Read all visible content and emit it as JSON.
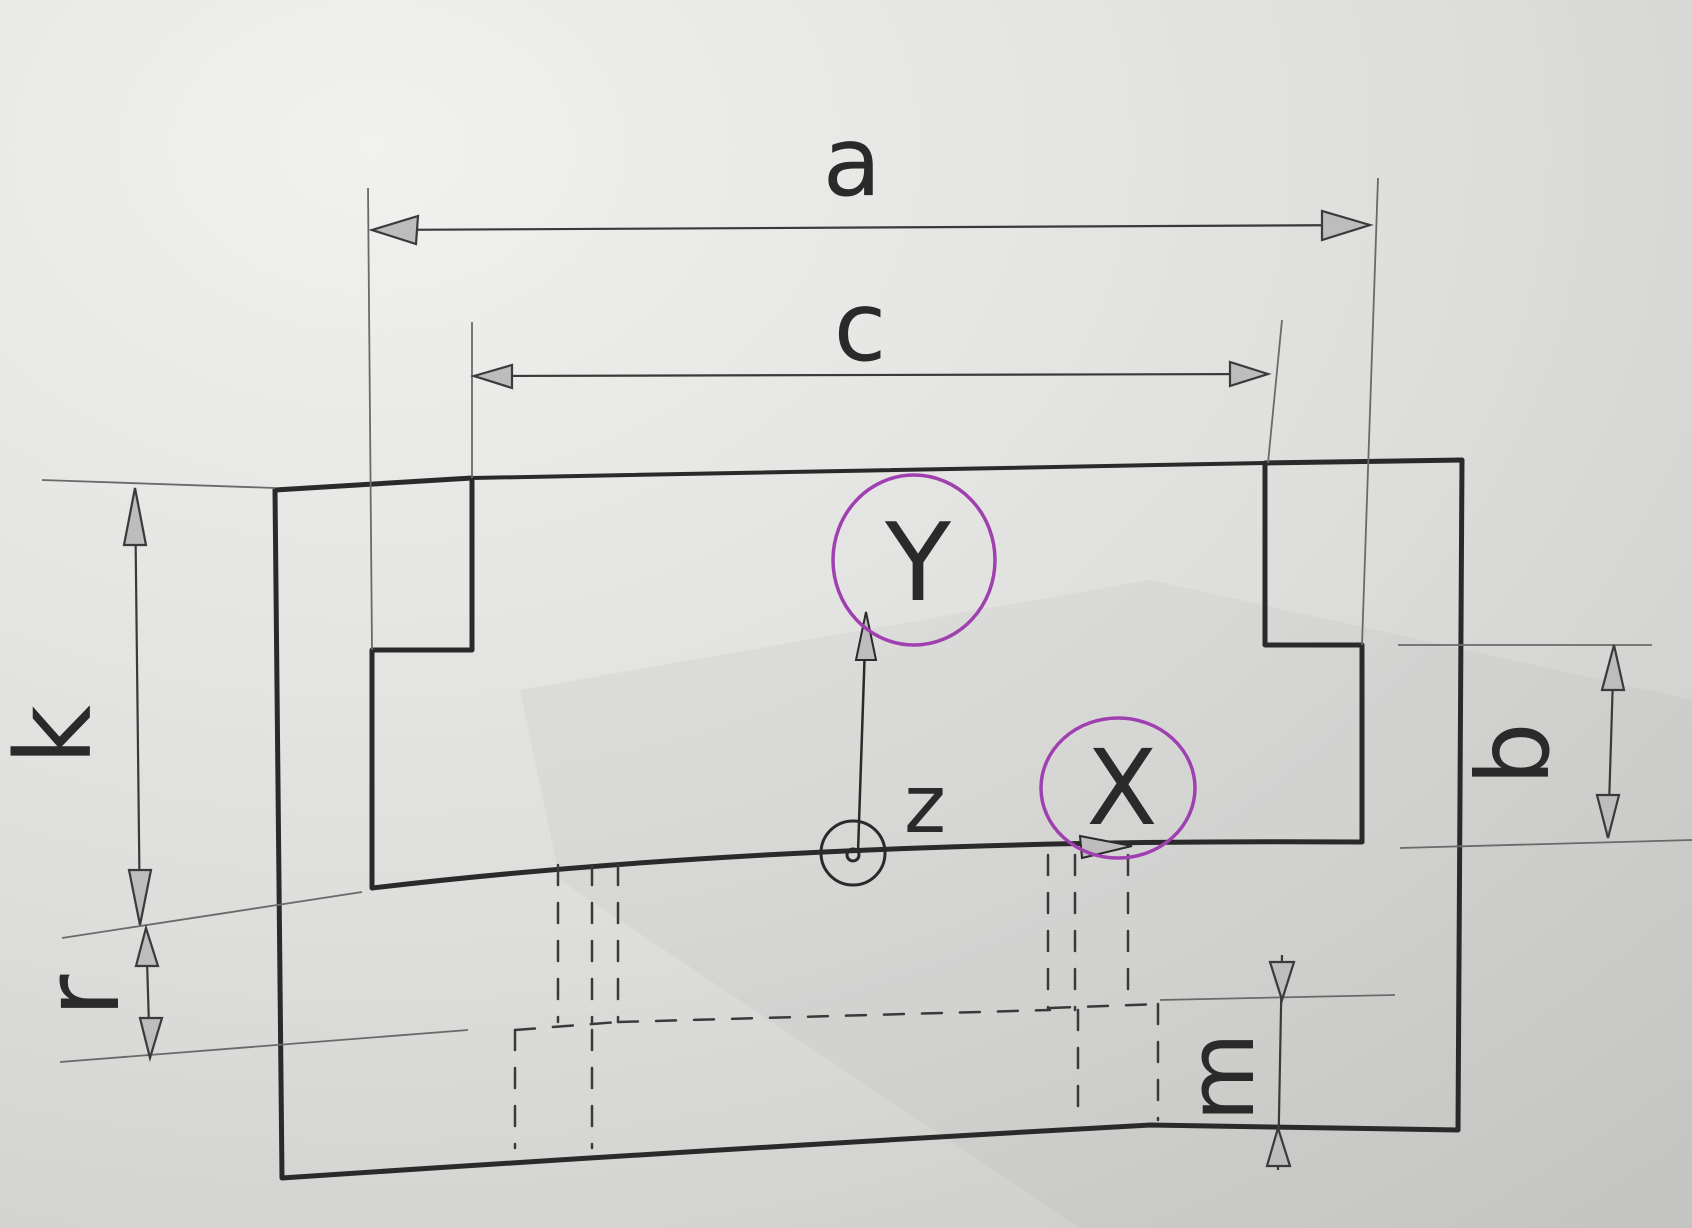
{
  "diagram": {
    "dimension_labels": {
      "a": "a",
      "c": "c",
      "k": "k",
      "r": "r",
      "b": "b",
      "m": "m"
    },
    "axis_labels": {
      "x": "X",
      "y": "Y",
      "z": "z"
    },
    "colors": {
      "paper_light": "#f1f1ef",
      "paper_dark": "#c9c9c7",
      "pencil": "#2a2a2a",
      "pencil_light": "#6a6a6a",
      "axis_circle": "#a040b0"
    }
  }
}
